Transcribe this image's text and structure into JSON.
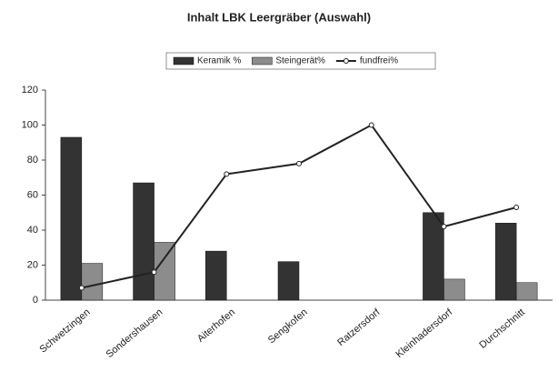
{
  "chart_data": {
    "type": "bar_line",
    "title": "Inhalt LBK Leergräber (Auswahl)",
    "categories": [
      "Schwetzingen",
      "Sondershausen",
      "Aiterhofen",
      "Sengkofen",
      "Ratzersdorf",
      "Kleinhadersdorf",
      "Durchschnitt"
    ],
    "series": [
      {
        "name": "Keramik %",
        "color": "#333333",
        "type": "bar",
        "values": [
          93,
          67,
          28,
          22,
          0,
          50,
          44
        ]
      },
      {
        "name": "Steingerät%",
        "color": "#8c8c8c",
        "type": "bar",
        "values": [
          21,
          33,
          0,
          0,
          0,
          12,
          10
        ]
      },
      {
        "name": "fundfrei%",
        "color": "#222222",
        "type": "line",
        "values": [
          7,
          16,
          72,
          78,
          100,
          42,
          53
        ]
      }
    ],
    "ylim": [
      0,
      120
    ],
    "yticks": [
      0,
      20,
      40,
      60,
      80,
      100,
      120
    ],
    "grid": false,
    "legend": "top"
  }
}
